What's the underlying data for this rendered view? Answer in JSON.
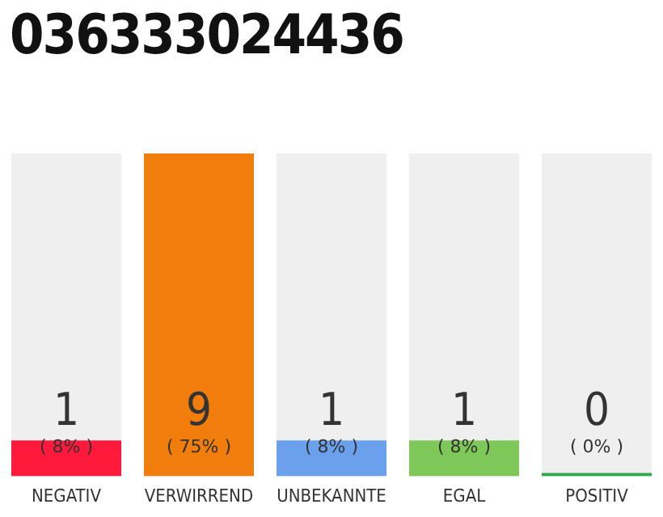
{
  "chart_data": {
    "type": "bar",
    "title": "036333024436",
    "categories": [
      "NEGATIV",
      "VERWIRREND",
      "UNBEKANNTE",
      "EGAL",
      "POSITIV"
    ],
    "values": [
      1,
      9,
      1,
      1,
      0
    ],
    "colors": [
      "#ff1a3c",
      "#f07d0c",
      "#6aa0ec",
      "#7ec85a",
      "#2aaa4a"
    ],
    "ylim": [
      0,
      9
    ],
    "tick_labels": "x",
    "data_labels": true,
    "grid": false,
    "legend": false,
    "annotations": [
      "( 8% )",
      "( 75% )",
      "( 8% )",
      "( 8% )",
      "( 0% )"
    ]
  }
}
